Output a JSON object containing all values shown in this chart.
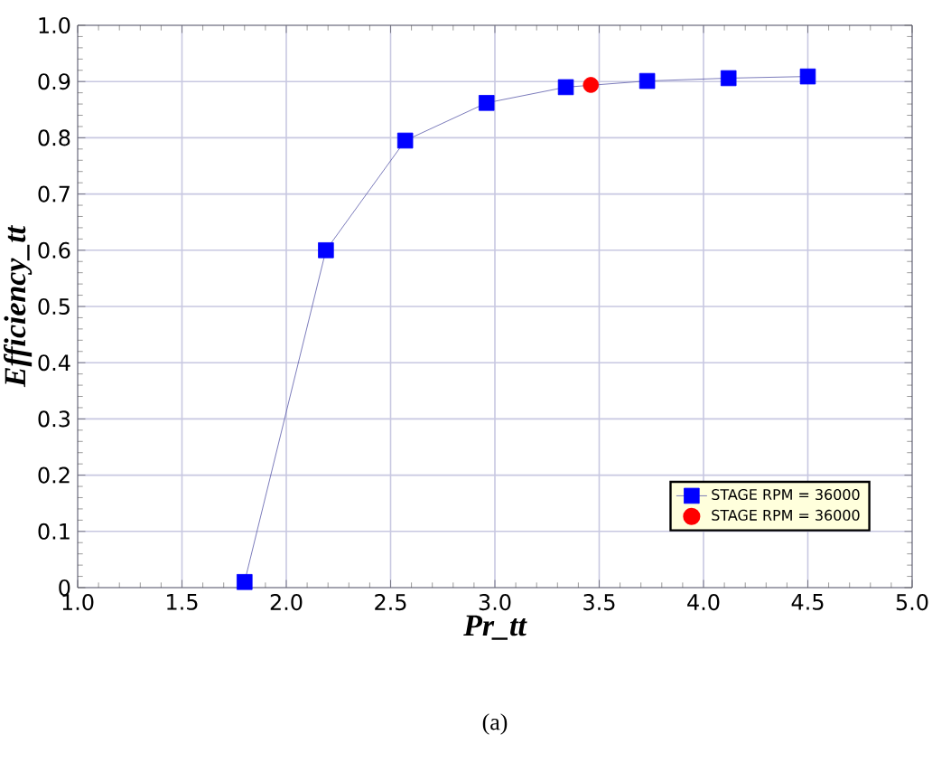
{
  "chart_data": {
    "type": "line",
    "xlabel": "Pr_tt",
    "ylabel": "Efficiency_tt",
    "series": [
      {
        "name": "STAGE RPM = 36000",
        "color": "#0000ff",
        "marker": "square",
        "x": [
          1.8,
          2.19,
          2.57,
          2.96,
          3.34,
          3.73,
          4.12,
          4.5
        ],
        "values": [
          0.01,
          0.6,
          0.795,
          0.862,
          0.89,
          0.901,
          0.906,
          0.909
        ]
      },
      {
        "name": "STAGE RPM = 36000",
        "color": "#ff0000",
        "type": "scatter",
        "marker": "circle",
        "x": [
          3.46
        ],
        "values": [
          0.894
        ]
      }
    ],
    "xlim": [
      1.0,
      5.0
    ],
    "ylim": [
      0,
      1.0
    ],
    "xticks": [
      {
        "value": 1.0,
        "label": "1.0"
      },
      {
        "value": 1.5,
        "label": "1.5"
      },
      {
        "value": 2.0,
        "label": "2.0"
      },
      {
        "value": 2.5,
        "label": "2.5"
      },
      {
        "value": 3.0,
        "label": "3.0"
      },
      {
        "value": 3.5,
        "label": "3.5"
      },
      {
        "value": 4.0,
        "label": "4.0"
      },
      {
        "value": 4.5,
        "label": "4.5"
      },
      {
        "value": 5.0,
        "label": "5.0"
      }
    ],
    "yticks": [
      0,
      0.1,
      0.2,
      0.3,
      0.4,
      0.5,
      0.6,
      0.7,
      0.8,
      0.9,
      {
        "value": 1.0,
        "label": "1.0"
      }
    ],
    "grid": true,
    "legend": "bottom right",
    "annotations": [
      "(a)"
    ]
  }
}
